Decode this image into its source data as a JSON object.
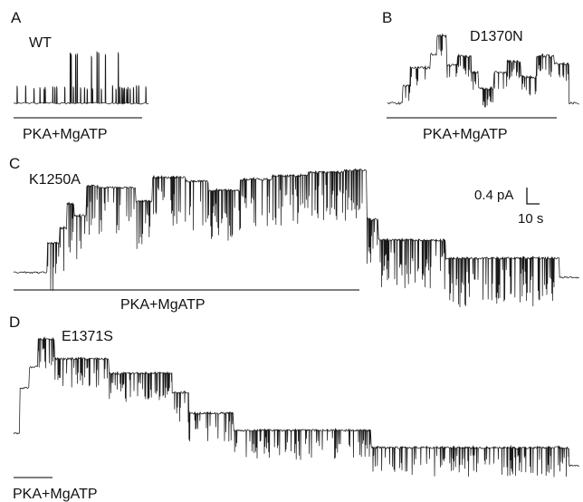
{
  "figure": {
    "panels": [
      {
        "letter": "A",
        "construct": "WT",
        "treatment": "PKA+MgATP"
      },
      {
        "letter": "B",
        "construct": "D1370N",
        "treatment": "PKA+MgATP"
      },
      {
        "letter": "C",
        "construct": "K1250A",
        "treatment": "PKA+MgATP"
      },
      {
        "letter": "D",
        "construct": "E1371S",
        "treatment": "PKA+MgATP"
      }
    ],
    "scale_bar": {
      "current": "0.4 pA",
      "time": "10 s"
    },
    "colors": {
      "trace": "#1a1a1a",
      "background": "#ffffff"
    }
  }
}
